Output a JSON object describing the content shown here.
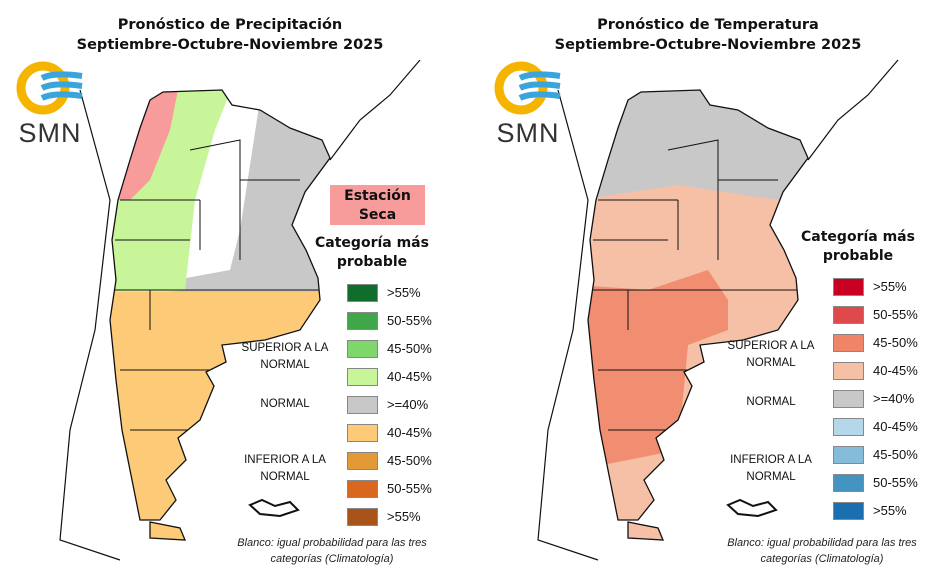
{
  "logo_text": "SMN",
  "precip": {
    "title_line1": "Pronóstico de Precipitación",
    "title_line2": "Septiembre-Octubre-Noviembre 2025",
    "dry_season_label": "Estación Seca",
    "dry_season_color": "#f79b9b",
    "legend_title": "Categoría más probable",
    "groups": {
      "above": "SUPERIOR A LA NORMAL",
      "normal": "NORMAL",
      "below": "INFERIOR A LA NORMAL"
    },
    "legend": [
      {
        "label": ">55%",
        "color": "#0f6e2c"
      },
      {
        "label": "50-55%",
        "color": "#3fa64a"
      },
      {
        "label": "45-50%",
        "color": "#7fd66a"
      },
      {
        "label": "40-45%",
        "color": "#c8f59a"
      },
      {
        "label": ">=40%",
        "color": "#c8c8c8"
      },
      {
        "label": "40-45%",
        "color": "#fdcb78"
      },
      {
        "label": "45-50%",
        "color": "#e39a36"
      },
      {
        "label": "50-55%",
        "color": "#d9681e"
      },
      {
        "label": ">55%",
        "color": "#a8531a"
      }
    ],
    "note": "Blanco: igual probabilidad para las tres categorías (Climatología)"
  },
  "temp": {
    "title_line1": "Pronóstico de Temperatura",
    "title_line2": "Septiembre-Octubre-Noviembre 2025",
    "legend_title": "Categoría más probable",
    "groups": {
      "above": "SUPERIOR A LA NORMAL",
      "normal": "NORMAL",
      "below": "INFERIOR A LA NORMAL"
    },
    "legend": [
      {
        "label": ">55%",
        "color": "#c90022"
      },
      {
        "label": "50-55%",
        "color": "#de4a4c"
      },
      {
        "label": "45-50%",
        "color": "#f08466"
      },
      {
        "label": "40-45%",
        "color": "#f6c0a6"
      },
      {
        "label": ">=40%",
        "color": "#c8c8c8"
      },
      {
        "label": "40-45%",
        "color": "#b5d7ea"
      },
      {
        "label": "45-50%",
        "color": "#84bcda"
      },
      {
        "label": "50-55%",
        "color": "#4393c3"
      },
      {
        "label": ">55%",
        "color": "#1a6fb0"
      }
    ],
    "note": "Blanco: igual probabilidad para las tres categorías (Climatología)"
  }
}
